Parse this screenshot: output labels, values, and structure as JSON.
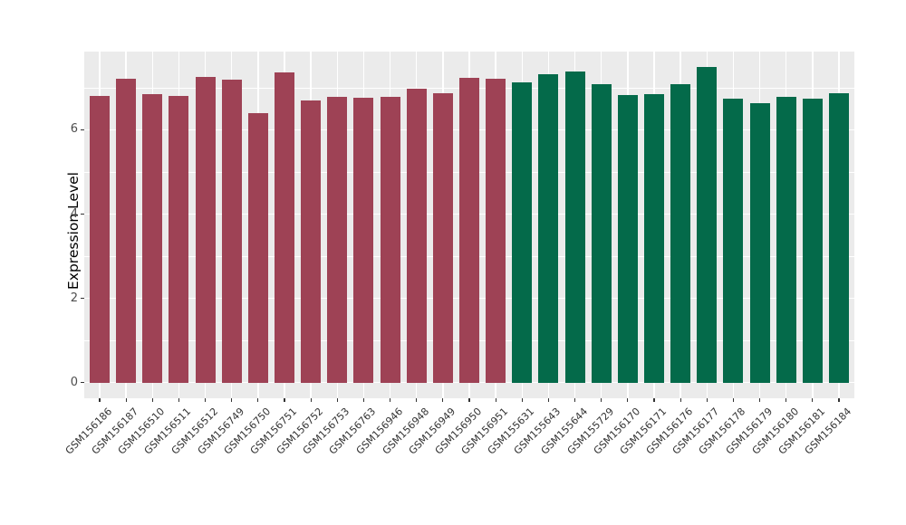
{
  "figure": {
    "background": "#FFFFFF",
    "panel_background": "#EBEBEB",
    "gridline_color": "#FFFFFF",
    "tick_mark_color": "#333333",
    "axis_text_color": "#4D4D4D",
    "axis_title_color": "#000000"
  },
  "chart_data": {
    "type": "bar",
    "title": "",
    "xlabel": "",
    "ylabel": "Expression Level",
    "ylim": [
      -0.37,
      7.86
    ],
    "yticks_major": [
      0,
      2,
      4,
      6
    ],
    "yticks_minor": [
      1,
      3,
      5,
      7
    ],
    "grid": "white major+minor horizontal, white vertical at each bar center",
    "legend_position": "none",
    "x_tick_label_angle": 45,
    "group_colors": {
      "maroon": "#9E4255",
      "green": "#046A4A"
    },
    "bars": [
      {
        "label": "GSM156186",
        "value": 6.8,
        "group": "maroon"
      },
      {
        "label": "GSM156187",
        "value": 7.22,
        "group": "maroon"
      },
      {
        "label": "GSM156510",
        "value": 6.85,
        "group": "maroon"
      },
      {
        "label": "GSM156511",
        "value": 6.8,
        "group": "maroon"
      },
      {
        "label": "GSM156512",
        "value": 7.25,
        "group": "maroon"
      },
      {
        "label": "GSM156749",
        "value": 7.18,
        "group": "maroon"
      },
      {
        "label": "GSM156750",
        "value": 6.4,
        "group": "maroon"
      },
      {
        "label": "GSM156751",
        "value": 7.36,
        "group": "maroon"
      },
      {
        "label": "GSM156752",
        "value": 6.7,
        "group": "maroon"
      },
      {
        "label": "GSM156753",
        "value": 6.79,
        "group": "maroon"
      },
      {
        "label": "GSM156763",
        "value": 6.76,
        "group": "maroon"
      },
      {
        "label": "GSM156946",
        "value": 6.78,
        "group": "maroon"
      },
      {
        "label": "GSM156948",
        "value": 6.97,
        "group": "maroon"
      },
      {
        "label": "GSM156949",
        "value": 6.86,
        "group": "maroon"
      },
      {
        "label": "GSM156950",
        "value": 7.24,
        "group": "maroon"
      },
      {
        "label": "GSM156951",
        "value": 7.21,
        "group": "maroon"
      },
      {
        "label": "GSM155631",
        "value": 7.12,
        "group": "green"
      },
      {
        "label": "GSM155643",
        "value": 7.31,
        "group": "green"
      },
      {
        "label": "GSM155644",
        "value": 7.38,
        "group": "green"
      },
      {
        "label": "GSM155729",
        "value": 7.08,
        "group": "green"
      },
      {
        "label": "GSM156170",
        "value": 6.82,
        "group": "green"
      },
      {
        "label": "GSM156171",
        "value": 6.85,
        "group": "green"
      },
      {
        "label": "GSM156176",
        "value": 7.09,
        "group": "green"
      },
      {
        "label": "GSM156177",
        "value": 7.49,
        "group": "green"
      },
      {
        "label": "GSM156178",
        "value": 6.73,
        "group": "green"
      },
      {
        "label": "GSM156179",
        "value": 6.64,
        "group": "green"
      },
      {
        "label": "GSM156180",
        "value": 6.79,
        "group": "green"
      },
      {
        "label": "GSM156181",
        "value": 6.74,
        "group": "green"
      },
      {
        "label": "GSM156184",
        "value": 6.86,
        "group": "green"
      }
    ]
  }
}
